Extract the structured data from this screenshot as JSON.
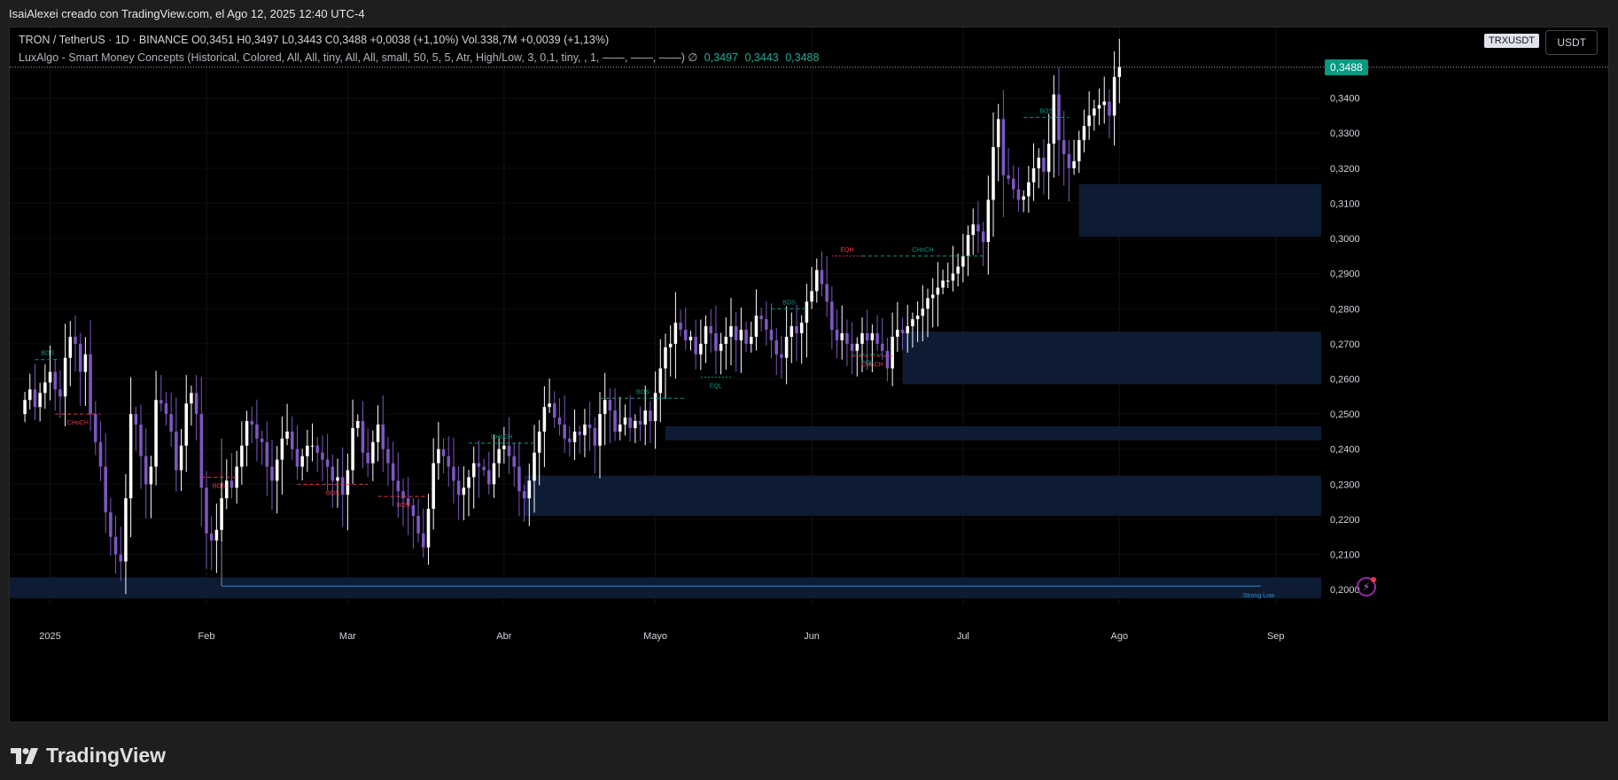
{
  "caption": "IsaiAlexei creado con TradingView.com, el Ago 12, 2025 12:40 UTC-4",
  "legend": {
    "line1": "TRON / TetherUS · 1D · BINANCE  O0,3451  H0,3497  L0,3443  C0,3488  +0,0038 (+1,10%)  Vol.338,7M  +0,0039 (+1,13%)",
    "line2": "LuxAlgo - Smart Money Concepts (Historical, Colored, All, All, tiny, All, All, small, 50, 5, 5, Atr, High/Low, 3, 0,1, tiny, , 1, ——, ——, ——)  ∅",
    "vals": [
      "0,3497",
      "0,3443",
      "0,3488"
    ]
  },
  "symbol_badge": "TRXUSDT",
  "currency_button": "USDT",
  "last_price": "0,3488",
  "footer": {
    "brand": "TradingView"
  },
  "colors": {
    "up": "#ffffff",
    "down": "#7e57c2",
    "bull": "#089981",
    "bear": "#f23645",
    "zone": "#0d1b33"
  },
  "chart_data": {
    "type": "candlestick",
    "symbol": "TRXUSDT",
    "timeframe": "1D",
    "ylim": [
      0.196,
      0.351
    ],
    "y_ticks": [
      "0,3400",
      "0,3300",
      "0,3200",
      "0,3100",
      "0,3000",
      "0,2900",
      "0,2800",
      "0,2700",
      "0,2600",
      "0,2500",
      "0,2400",
      "0,2300",
      "0,2200",
      "0,2100",
      "0,2000"
    ],
    "y_tick_values": [
      0.34,
      0.33,
      0.32,
      0.31,
      0.3,
      0.29,
      0.28,
      0.27,
      0.26,
      0.25,
      0.24,
      0.23,
      0.22,
      0.21,
      0.2
    ],
    "x_ticks": [
      {
        "label": "2025",
        "day": 5
      },
      {
        "label": "Feb",
        "day": 36
      },
      {
        "label": "Mar",
        "day": 64
      },
      {
        "label": "Abr",
        "day": 95
      },
      {
        "label": "Mayo",
        "day": 125
      },
      {
        "label": "Jun",
        "day": 156
      },
      {
        "label": "Jul",
        "day": 186
      },
      {
        "label": "Ago",
        "day": 217
      },
      {
        "label": "Sep",
        "day": 248
      }
    ],
    "x_range_days": [
      -3,
      257
    ],
    "closes": [
      0.254,
      0.257,
      0.252,
      0.256,
      0.259,
      0.262,
      0.257,
      0.255,
      0.266,
      0.272,
      0.27,
      0.262,
      0.267,
      0.25,
      0.242,
      0.235,
      0.222,
      0.215,
      0.21,
      0.208,
      0.226,
      0.25,
      0.247,
      0.238,
      0.23,
      0.235,
      0.254,
      0.253,
      0.25,
      0.245,
      0.234,
      0.241,
      0.253,
      0.256,
      0.25,
      0.229,
      0.216,
      0.214,
      0.217,
      0.226,
      0.231,
      0.229,
      0.235,
      0.241,
      0.248,
      0.247,
      0.243,
      0.242,
      0.235,
      0.231,
      0.237,
      0.243,
      0.245,
      0.24,
      0.235,
      0.238,
      0.241,
      0.241,
      0.239,
      0.237,
      0.235,
      0.231,
      0.232,
      0.227,
      0.234,
      0.246,
      0.248,
      0.239,
      0.236,
      0.242,
      0.247,
      0.24,
      0.236,
      0.231,
      0.228,
      0.226,
      0.224,
      0.221,
      0.216,
      0.212,
      0.223,
      0.236,
      0.24,
      0.238,
      0.235,
      0.231,
      0.227,
      0.229,
      0.232,
      0.236,
      0.235,
      0.234,
      0.23,
      0.236,
      0.24,
      0.241,
      0.238,
      0.235,
      0.228,
      0.226,
      0.231,
      0.239,
      0.245,
      0.252,
      0.253,
      0.249,
      0.247,
      0.243,
      0.242,
      0.245,
      0.244,
      0.247,
      0.246,
      0.241,
      0.25,
      0.254,
      0.251,
      0.245,
      0.247,
      0.249,
      0.246,
      0.248,
      0.247,
      0.251,
      0.248,
      0.256,
      0.263,
      0.269,
      0.27,
      0.276,
      0.274,
      0.271,
      0.272,
      0.267,
      0.27,
      0.275,
      0.273,
      0.268,
      0.27,
      0.272,
      0.275,
      0.271,
      0.274,
      0.27,
      0.272,
      0.278,
      0.277,
      0.274,
      0.271,
      0.267,
      0.266,
      0.272,
      0.275,
      0.273,
      0.276,
      0.282,
      0.285,
      0.291,
      0.287,
      0.282,
      0.274,
      0.271,
      0.273,
      0.27,
      0.268,
      0.27,
      0.273,
      0.271,
      0.273,
      0.27,
      0.268,
      0.263,
      0.272,
      0.274,
      0.273,
      0.275,
      0.277,
      0.278,
      0.28,
      0.283,
      0.284,
      0.286,
      0.288,
      0.288,
      0.29,
      0.292,
      0.295,
      0.301,
      0.304,
      0.302,
      0.299,
      0.311,
      0.326,
      0.334,
      0.318,
      0.317,
      0.314,
      0.311,
      0.312,
      0.316,
      0.32,
      0.323,
      0.319,
      0.327,
      0.341,
      0.328,
      0.324,
      0.32,
      0.322,
      0.328,
      0.332,
      0.335,
      0.337,
      0.338,
      0.339,
      0.335,
      0.346,
      0.3488
    ]
  },
  "annotations": [
    {
      "label": "BOS",
      "type": "bos",
      "bull": true,
      "x1": 2,
      "x2": 7,
      "y": 0.2655
    },
    {
      "label": "CHoCH",
      "type": "choch",
      "bull": false,
      "x1": 6,
      "x2": 15,
      "y": 0.25
    },
    {
      "label": "BOS",
      "type": "bos",
      "bull": false,
      "x1": 35,
      "x2": 42,
      "y": 0.232
    },
    {
      "label": "BOS",
      "type": "bos",
      "bull": false,
      "x1": 54,
      "x2": 68,
      "y": 0.23
    },
    {
      "label": "BOS",
      "type": "bos",
      "bull": false,
      "x1": 70,
      "x2": 80,
      "y": 0.2265
    },
    {
      "label": "CHoCH",
      "type": "choch",
      "bull": true,
      "x1": 88,
      "x2": 101,
      "y": 0.2417
    },
    {
      "label": "BOS",
      "type": "bos",
      "bull": true,
      "x1": 114,
      "x2": 131,
      "y": 0.2545
    },
    {
      "label": "EQL",
      "type": "eql",
      "bull": true,
      "x1": 134,
      "x2": 140,
      "y": 0.2605
    },
    {
      "label": "BOS",
      "type": "bos",
      "bull": true,
      "x1": 148,
      "x2": 155,
      "y": 0.28
    },
    {
      "label": "EQH",
      "type": "eqh",
      "bull": false,
      "x1": 160,
      "x2": 166,
      "y": 0.295
    },
    {
      "label": "CHoCH",
      "type": "choch",
      "bull": true,
      "x1": 166,
      "x2": 190,
      "y": 0.295
    },
    {
      "label": "EQL",
      "type": "eql",
      "bull": true,
      "x1": 164,
      "x2": 170,
      "y": 0.267
    },
    {
      "label": "CHoCH",
      "type": "choch",
      "bull": false,
      "x1": 164,
      "x2": 172,
      "y": 0.2665
    },
    {
      "label": "BOS",
      "type": "bos",
      "bull": true,
      "x1": 198,
      "x2": 207,
      "y": 0.3345
    }
  ],
  "zones": [
    {
      "x1": 209,
      "x2": 257,
      "y1": 0.3005,
      "y2": 0.3155
    },
    {
      "x1": 174,
      "x2": 257,
      "y1": 0.2585,
      "y2": 0.2735
    },
    {
      "x1": 127,
      "x2": 257,
      "y1": 0.2425,
      "y2": 0.2465
    },
    {
      "x1": 99,
      "x2": 257,
      "y1": 0.221,
      "y2": 0.2325
    },
    {
      "x1": -3,
      "x2": 257,
      "y1": 0.1975,
      "y2": 0.2035
    }
  ],
  "strong_low": {
    "label": "Strong Low",
    "x1": 39,
    "x2": 245,
    "y": 0.201
  }
}
